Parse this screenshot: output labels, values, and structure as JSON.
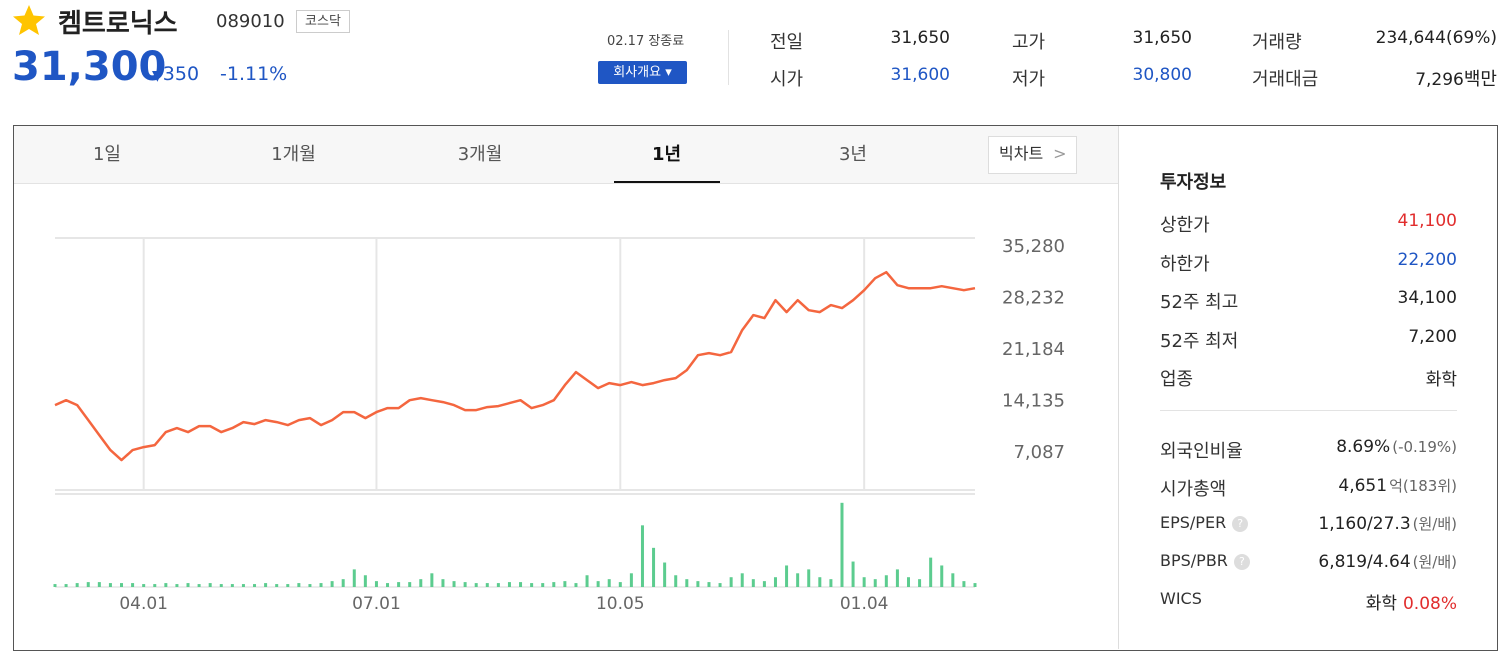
{
  "header": {
    "name": "켐트로닉스",
    "code": "089010",
    "market": "코스닥",
    "price": "31,300",
    "change": "350",
    "change_rate": "-1.11%",
    "status": "02.17 장종료",
    "company_button": "회사개요"
  },
  "summary": {
    "rows": [
      [
        {
          "label": "전일",
          "value": "31,650"
        },
        {
          "label": "고가",
          "value": "31,650"
        },
        {
          "label": "거래량",
          "value": "234,644(69%)"
        }
      ],
      [
        {
          "label": "시가",
          "value": "31,600"
        },
        {
          "label": "저가",
          "value": "30,800"
        },
        {
          "label": "거래대금",
          "value": "7,296",
          "unit": "백만"
        }
      ]
    ]
  },
  "tabs": {
    "items": [
      "1일",
      "1개월",
      "3개월",
      "1년",
      "3년"
    ],
    "active": 3,
    "big_chart": "빅차트"
  },
  "chart_data": {
    "type": "line",
    "color": "#f4663f",
    "categories": [
      null,
      null,
      null,
      null,
      null,
      null,
      null,
      null,
      "04.01",
      null,
      null,
      null,
      null,
      null,
      null,
      null,
      null,
      null,
      null,
      null,
      null,
      null,
      null,
      null,
      null,
      null,
      null,
      null,
      null,
      "07.01",
      null,
      null,
      null,
      null,
      null,
      null,
      null,
      null,
      null,
      null,
      null,
      null,
      null,
      null,
      null,
      null,
      null,
      null,
      null,
      null,
      null,
      "10.05",
      null,
      null,
      null,
      null,
      null,
      null,
      null,
      null,
      null,
      null,
      null,
      null,
      null,
      null,
      null,
      null,
      null,
      null,
      null,
      null,
      null,
      "01.04",
      null,
      null,
      null,
      null,
      null,
      null,
      null,
      null,
      null,
      null
    ],
    "values": [
      13520,
      14200,
      13520,
      11470,
      9420,
      7360,
      5990,
      7360,
      7770,
      8050,
      9830,
      10370,
      9830,
      10650,
      10650,
      9830,
      10370,
      11190,
      10920,
      11470,
      11190,
      10780,
      11470,
      11740,
      10780,
      11470,
      12560,
      12560,
      11740,
      12560,
      13110,
      13110,
      14200,
      14480,
      14200,
      13930,
      13520,
      12840,
      12840,
      13250,
      13380,
      13800,
      14200,
      13110,
      13520,
      14200,
      16260,
      18040,
      16940,
      15850,
      16530,
      16260,
      16670,
      16260,
      16530,
      16940,
      17220,
      18310,
      20360,
      20640,
      20360,
      20780,
      23790,
      25840,
      25430,
      27890,
      26250,
      27890,
      26520,
      26250,
      27210,
      26800,
      27890,
      29260,
      30900,
      31720,
      29940,
      29530,
      29530,
      29530,
      29800,
      29530,
      29260,
      29530
    ],
    "volume": {
      "color": "#5ccc8f",
      "ylim": [
        0,
        95
      ],
      "values": [
        3,
        3,
        4,
        5,
        5,
        4,
        4,
        4,
        3,
        3,
        4,
        3,
        4,
        3,
        4,
        3,
        3,
        3,
        3,
        4,
        3,
        3,
        4,
        3,
        4,
        6,
        8,
        18,
        12,
        6,
        4,
        5,
        5,
        8,
        14,
        8,
        6,
        5,
        4,
        4,
        4,
        5,
        5,
        4,
        4,
        5,
        6,
        4,
        12,
        6,
        8,
        5,
        14,
        63,
        40,
        25,
        12,
        8,
        6,
        5,
        4,
        10,
        14,
        8,
        6,
        10,
        22,
        14,
        18,
        10,
        8,
        86,
        26,
        10,
        8,
        12,
        18,
        10,
        8,
        30,
        22,
        14,
        6,
        4
      ]
    },
    "ylim": [
      1900,
      36400
    ],
    "yticks": [
      {
        "value": 7087,
        "label": "7,087"
      },
      {
        "value": 14135,
        "label": "14,135"
      },
      {
        "value": 21184,
        "label": "21,184"
      },
      {
        "value": 28232,
        "label": "28,232"
      },
      {
        "value": 35280,
        "label": "35,280"
      }
    ]
  },
  "invest": {
    "title": "투자정보",
    "rows": [
      {
        "label": "상한가",
        "value": "41,100"
      },
      {
        "label": "하한가",
        "value": "22,200"
      },
      {
        "label": "52주 최고",
        "value": "34,100"
      },
      {
        "label": "52주 최저",
        "value": "7,200"
      },
      {
        "label": "업종",
        "value": "화학"
      }
    ],
    "rows2": [
      {
        "label": "외국인비율",
        "value": "8.69%",
        "note": "(-0.19%)"
      },
      {
        "label": "시가총액",
        "value": "4,651",
        "note": "억(183위)"
      },
      {
        "label": "EPS/PER",
        "value": "1,160/27.3",
        "note": "(원/배)"
      },
      {
        "label": "BPS/PBR",
        "value": "6,819/4.64",
        "note": "(원/배)"
      },
      {
        "label": "WICS",
        "value": "화학",
        "note": "0.08%"
      }
    ]
  }
}
